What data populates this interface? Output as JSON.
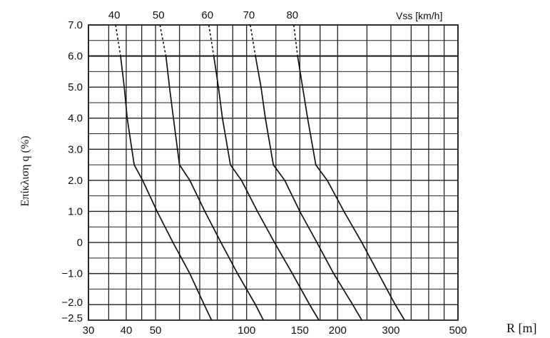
{
  "chart_data": {
    "type": "line",
    "xlabel": "R [m]",
    "ylabel": "Επίκλιση q (%)",
    "xscale": "log",
    "xlim": [
      30,
      500
    ],
    "ylim": [
      -2.5,
      7.0
    ],
    "x_ticks": [
      30,
      40,
      50,
      100,
      150,
      200,
      300,
      500
    ],
    "y_ticks": [
      "7.0",
      "6.0",
      "5.0",
      "4.0",
      "3.0",
      "2.0",
      "1.0",
      "0",
      "−1.0",
      "−2.0",
      "−2.5"
    ],
    "y_tick_values": [
      7.0,
      6.0,
      5.0,
      4.0,
      3.0,
      2.0,
      1.0,
      0,
      -1.0,
      -2.0,
      -2.5
    ],
    "grid": true,
    "top_axis_label": "Vss [km/h]",
    "series": [
      {
        "name": "40",
        "points": [
          [
            36.9,
            7.0
          ],
          [
            38.3,
            6.0
          ],
          [
            39.4,
            5.0
          ],
          [
            40.3,
            4.0
          ],
          [
            42.5,
            2.5
          ],
          [
            45.3,
            2.0
          ],
          [
            50.6,
            1.0
          ],
          [
            57.1,
            0
          ],
          [
            64.9,
            -1.0
          ],
          [
            72.4,
            -2.0
          ],
          [
            76.6,
            -2.5
          ]
        ],
        "dashed_until": 6.0
      },
      {
        "name": "50",
        "points": [
          [
            51.7,
            7.0
          ],
          [
            54.1,
            6.0
          ],
          [
            55.6,
            5.0
          ],
          [
            57.3,
            4.0
          ],
          [
            60.0,
            2.5
          ],
          [
            64.9,
            2.0
          ],
          [
            72.8,
            1.0
          ],
          [
            82.3,
            0
          ],
          [
            93.3,
            -1.0
          ],
          [
            107.0,
            -2.0
          ],
          [
            113.6,
            -2.5
          ]
        ],
        "dashed_until": 6.0
      },
      {
        "name": "60",
        "points": [
          [
            75.0,
            7.0
          ],
          [
            77.9,
            6.0
          ],
          [
            80.7,
            5.0
          ],
          [
            83.2,
            4.0
          ],
          [
            88.4,
            2.5
          ],
          [
            96.2,
            2.0
          ],
          [
            108.6,
            1.0
          ],
          [
            123.7,
            0
          ],
          [
            141.7,
            -1.0
          ],
          [
            161.6,
            -2.0
          ],
          [
            173.5,
            -2.5
          ]
        ],
        "dashed_until": 6.0
      },
      {
        "name": "70",
        "points": [
          [
            102.9,
            7.0
          ],
          [
            107.0,
            6.0
          ],
          [
            111.6,
            5.0
          ],
          [
            115.4,
            4.0
          ],
          [
            122.6,
            2.5
          ],
          [
            133.7,
            2.0
          ],
          [
            150.0,
            1.0
          ],
          [
            170.9,
            0
          ],
          [
            194.0,
            -1.0
          ],
          [
            224.3,
            -2.0
          ],
          [
            240.4,
            -2.5
          ]
        ],
        "dashed_until": 6.0
      },
      {
        "name": "80",
        "points": [
          [
            143.2,
            7.0
          ],
          [
            147.5,
            6.0
          ],
          [
            153.2,
            5.0
          ],
          [
            159.1,
            4.0
          ],
          [
            169.4,
            2.5
          ],
          [
            184.8,
            2.0
          ],
          [
            209.9,
            1.0
          ],
          [
            240.4,
            0
          ],
          [
            273.0,
            -1.0
          ],
          [
            310.0,
            -2.0
          ],
          [
            333.0,
            -2.5
          ]
        ],
        "dashed_until": 6.0
      }
    ]
  }
}
